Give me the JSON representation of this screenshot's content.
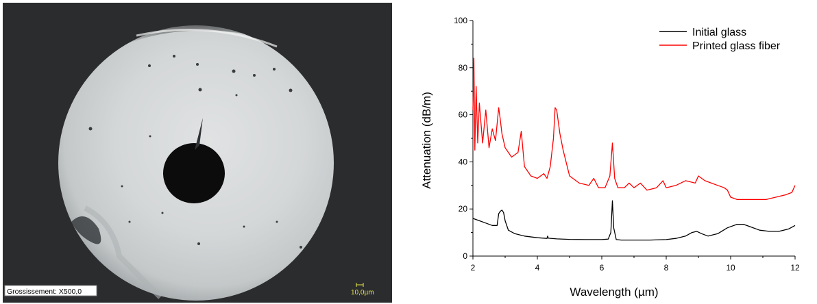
{
  "micrograph": {
    "caption": "Grossissement: X500,0",
    "scale_label": "10,0µm",
    "scale_color": "#e8e84a"
  },
  "chart_data": {
    "type": "line",
    "xlabel": "Wavelength (µm)",
    "ylabel": "Attenuation (dB/m)",
    "xlim": [
      2,
      12
    ],
    "ylim": [
      0,
      100
    ],
    "xticks": [
      2,
      4,
      6,
      8,
      10,
      12
    ],
    "yticks": [
      0,
      20,
      40,
      60,
      80,
      100
    ],
    "grid": false,
    "legend": "top-right",
    "series": [
      {
        "name": "Initial glass",
        "color": "#000000",
        "x": [
          2.0,
          2.2,
          2.4,
          2.6,
          2.75,
          2.8,
          2.85,
          2.9,
          2.95,
          3.0,
          3.1,
          3.3,
          3.6,
          4.0,
          4.3,
          4.32,
          4.34,
          4.6,
          5.0,
          5.5,
          6.0,
          6.2,
          6.28,
          6.33,
          6.37,
          6.45,
          6.6,
          7.0,
          7.5,
          8.0,
          8.3,
          8.6,
          8.8,
          8.95,
          9.1,
          9.3,
          9.6,
          9.9,
          10.2,
          10.4,
          10.6,
          10.9,
          11.2,
          11.5,
          11.8,
          12.0
        ],
        "y": [
          16,
          15,
          14,
          13,
          13,
          18,
          19,
          19.5,
          18.5,
          15,
          11,
          9.5,
          8.5,
          7.8,
          7.5,
          8.5,
          7.6,
          7.3,
          7.1,
          7.0,
          7.0,
          7.2,
          10,
          23.5,
          12,
          7,
          6.8,
          6.8,
          6.8,
          7.0,
          7.5,
          8.5,
          10,
          10.5,
          9.5,
          8.5,
          9.5,
          12,
          13.5,
          13.5,
          12.5,
          11,
          10.5,
          10.5,
          11.5,
          13
        ]
      },
      {
        "name": "Printed glass fiber",
        "color": "#ff0000",
        "x": [
          2.0,
          2.03,
          2.06,
          2.1,
          2.15,
          2.2,
          2.3,
          2.4,
          2.5,
          2.6,
          2.7,
          2.8,
          2.85,
          2.9,
          3.0,
          3.2,
          3.4,
          3.5,
          3.6,
          3.8,
          4.0,
          4.2,
          4.3,
          4.4,
          4.5,
          4.55,
          4.6,
          4.7,
          4.8,
          5.0,
          5.3,
          5.6,
          5.75,
          5.9,
          6.1,
          6.25,
          6.33,
          6.4,
          6.5,
          6.7,
          6.85,
          7.0,
          7.2,
          7.4,
          7.7,
          7.9,
          8.0,
          8.3,
          8.6,
          8.9,
          9.0,
          9.2,
          9.4,
          9.6,
          9.8,
          9.9,
          10.0,
          10.2,
          10.5,
          10.8,
          11.1,
          11.4,
          11.7,
          11.9,
          12.0
        ],
        "y": [
          62,
          84,
          45,
          72,
          48,
          65,
          48,
          62,
          46,
          54,
          49,
          63,
          58,
          52,
          46,
          42,
          44,
          53,
          38,
          34,
          33,
          35,
          33,
          38,
          50,
          63,
          62,
          52,
          45,
          34,
          31,
          30,
          33,
          29,
          29,
          34,
          48,
          33,
          29,
          29,
          31,
          29,
          31,
          28,
          29,
          32,
          29,
          30,
          32,
          31,
          34,
          32,
          31,
          30,
          29,
          28,
          25,
          24,
          24,
          24,
          24,
          25,
          26,
          27,
          30
        ]
      }
    ]
  }
}
